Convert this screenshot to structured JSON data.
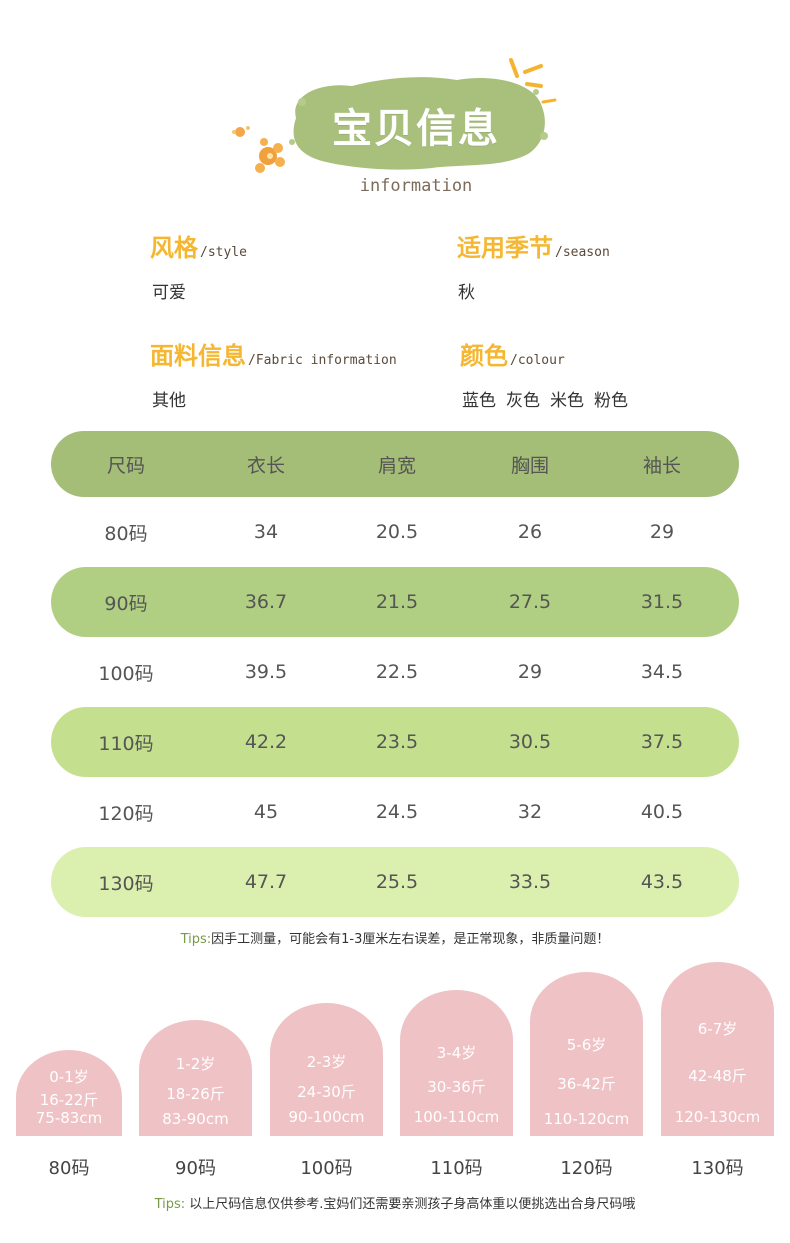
{
  "header": {
    "title": "宝贝信息",
    "subtitle": "information"
  },
  "info": {
    "style": {
      "label": "风格",
      "en": "/style",
      "value": "可爱"
    },
    "season": {
      "label": "适用季节",
      "en": "/season",
      "value": "秋"
    },
    "fabric": {
      "label": "面料信息",
      "en": "/Fabric information",
      "value": "其他"
    },
    "colour": {
      "label": "颜色",
      "en": "/colour",
      "values": [
        "蓝色",
        "灰色",
        "米色",
        "粉色"
      ]
    }
  },
  "size_table": {
    "headers": [
      "尺码",
      "衣长",
      "肩宽",
      "胸围",
      "袖长"
    ],
    "rows": [
      [
        "80码",
        "34",
        "20.5",
        "26",
        "29"
      ],
      [
        "90码",
        "36.7",
        "21.5",
        "27.5",
        "31.5"
      ],
      [
        "100码",
        "39.5",
        "22.5",
        "29",
        "34.5"
      ],
      [
        "110码",
        "42.2",
        "23.5",
        "30.5",
        "37.5"
      ],
      [
        "120码",
        "45",
        "24.5",
        "32",
        "40.5"
      ],
      [
        "130码",
        "47.7",
        "25.5",
        "33.5",
        "43.5"
      ]
    ]
  },
  "tips1": {
    "prefix": "Tips:",
    "text": "因手工测量，可能会有1-3厘米左右误差，是正常现象，非质量问题！"
  },
  "age_cards": [
    {
      "age": "0-1岁",
      "weight": "16-22斤",
      "height": "75-83cm",
      "size": "80码"
    },
    {
      "age": "1-2岁",
      "weight": "18-26斤",
      "height": "83-90cm",
      "size": "90码"
    },
    {
      "age": "2-3岁",
      "weight": "24-30斤",
      "height": "90-100cm",
      "size": "100码"
    },
    {
      "age": "3-4岁",
      "weight": "30-36斤",
      "height": "100-110cm",
      "size": "110码"
    },
    {
      "age": "5-6岁",
      "weight": "36-42斤",
      "height": "110-120cm",
      "size": "120码"
    },
    {
      "age": "6-7岁",
      "weight": "42-48斤",
      "height": "120-130cm",
      "size": "130码"
    }
  ],
  "tips2": {
    "prefix": "Tips:",
    "text": "以上尺码信息仅供参考.宝妈们还需要亲测孩子身高体重以便挑选出合身尺码哦"
  },
  "colors": {
    "header_row": "#a4bd77",
    "row_90": "#b0cf82",
    "row_110": "#c4e08e",
    "row_130": "#dbefae",
    "label_yellow": "#f5b732",
    "card_pink": "#efc2c6",
    "blob_green": "#a9c07c"
  }
}
